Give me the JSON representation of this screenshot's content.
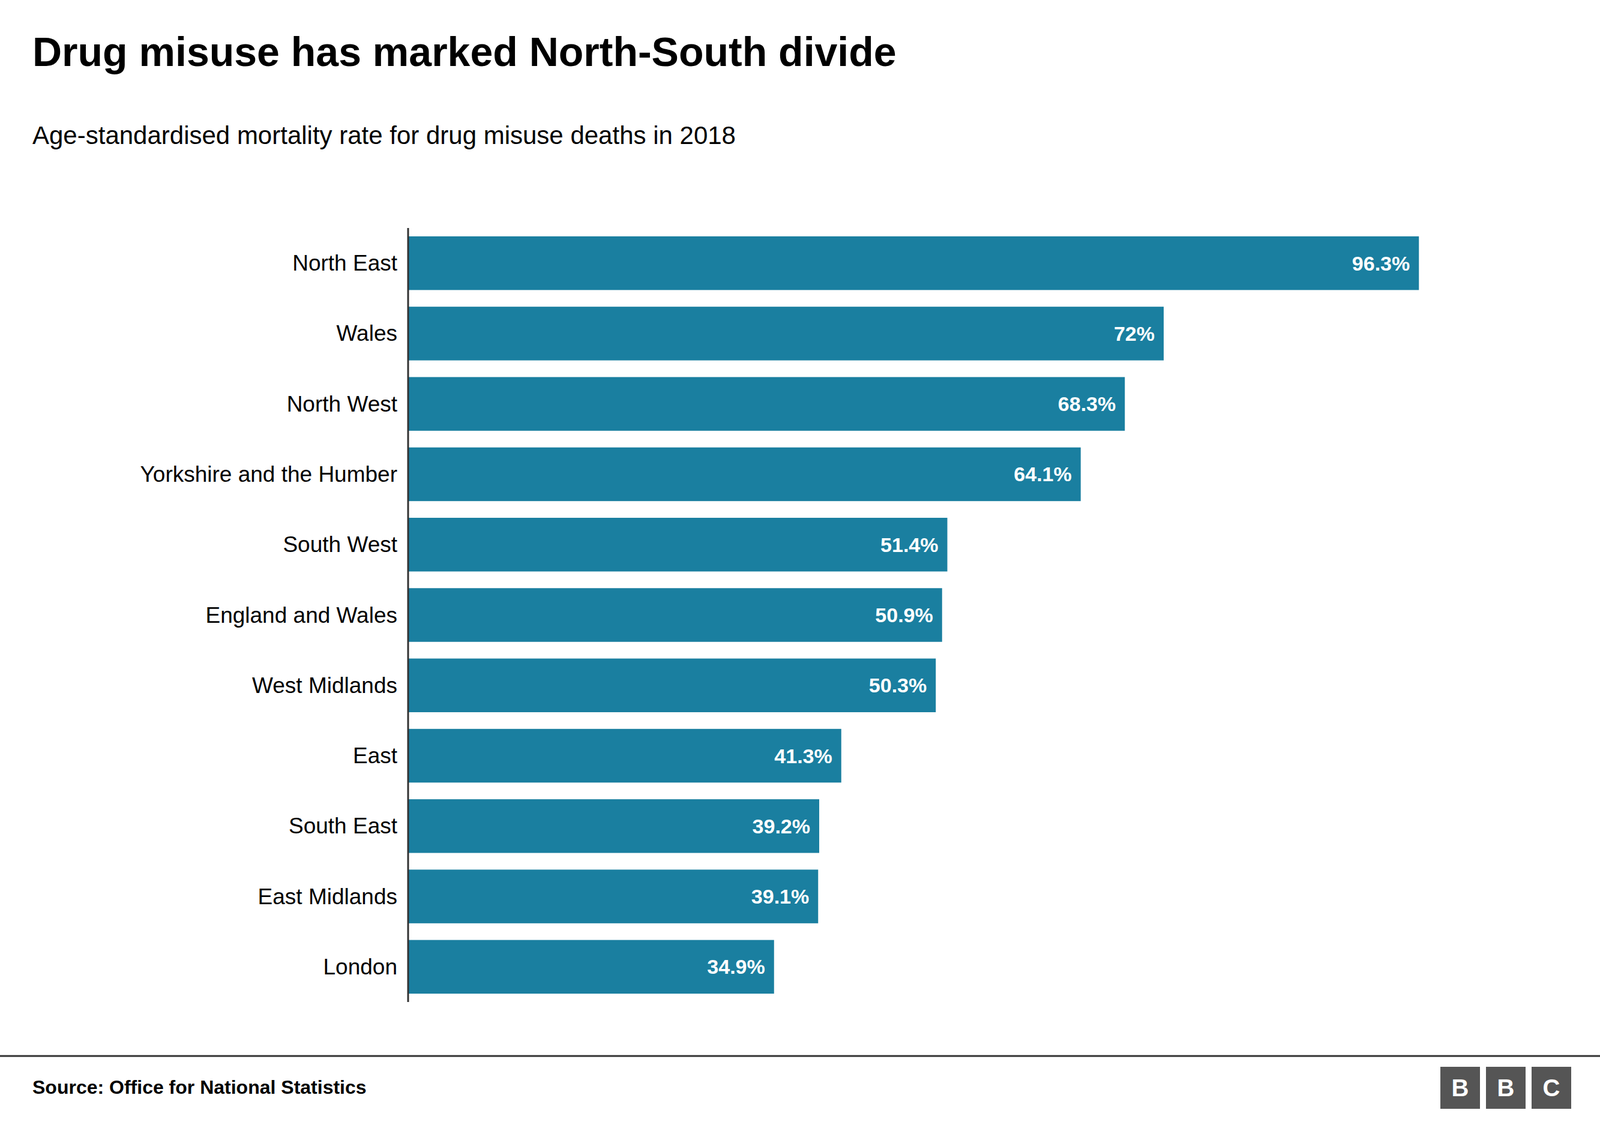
{
  "chart_data": {
    "type": "bar",
    "orientation": "horizontal",
    "title": "Drug misuse has marked North-South divide",
    "subtitle": "Age-standardised mortality rate for drug misuse deaths in 2018",
    "source": "Source: Office for National Statistics",
    "logo": "BBC",
    "categories": [
      "North East",
      "Wales",
      "North West",
      "Yorkshire and the Humber",
      "South West",
      "England and Wales",
      "West Midlands",
      "East",
      "South East",
      "East Midlands",
      "London"
    ],
    "values": [
      96.3,
      72.0,
      68.3,
      64.1,
      51.4,
      50.9,
      50.3,
      41.3,
      39.2,
      39.1,
      34.9
    ],
    "value_labels": [
      "96.3%",
      "72%",
      "68.3%",
      "64.1%",
      "51.4%",
      "50.9%",
      "50.3%",
      "41.3%",
      "39.2%",
      "39.1%",
      "34.9%"
    ],
    "data_labels": true,
    "color": "#1a7fa0",
    "xlim": [
      0,
      108
    ],
    "grid": false,
    "tick_labels": "y"
  }
}
